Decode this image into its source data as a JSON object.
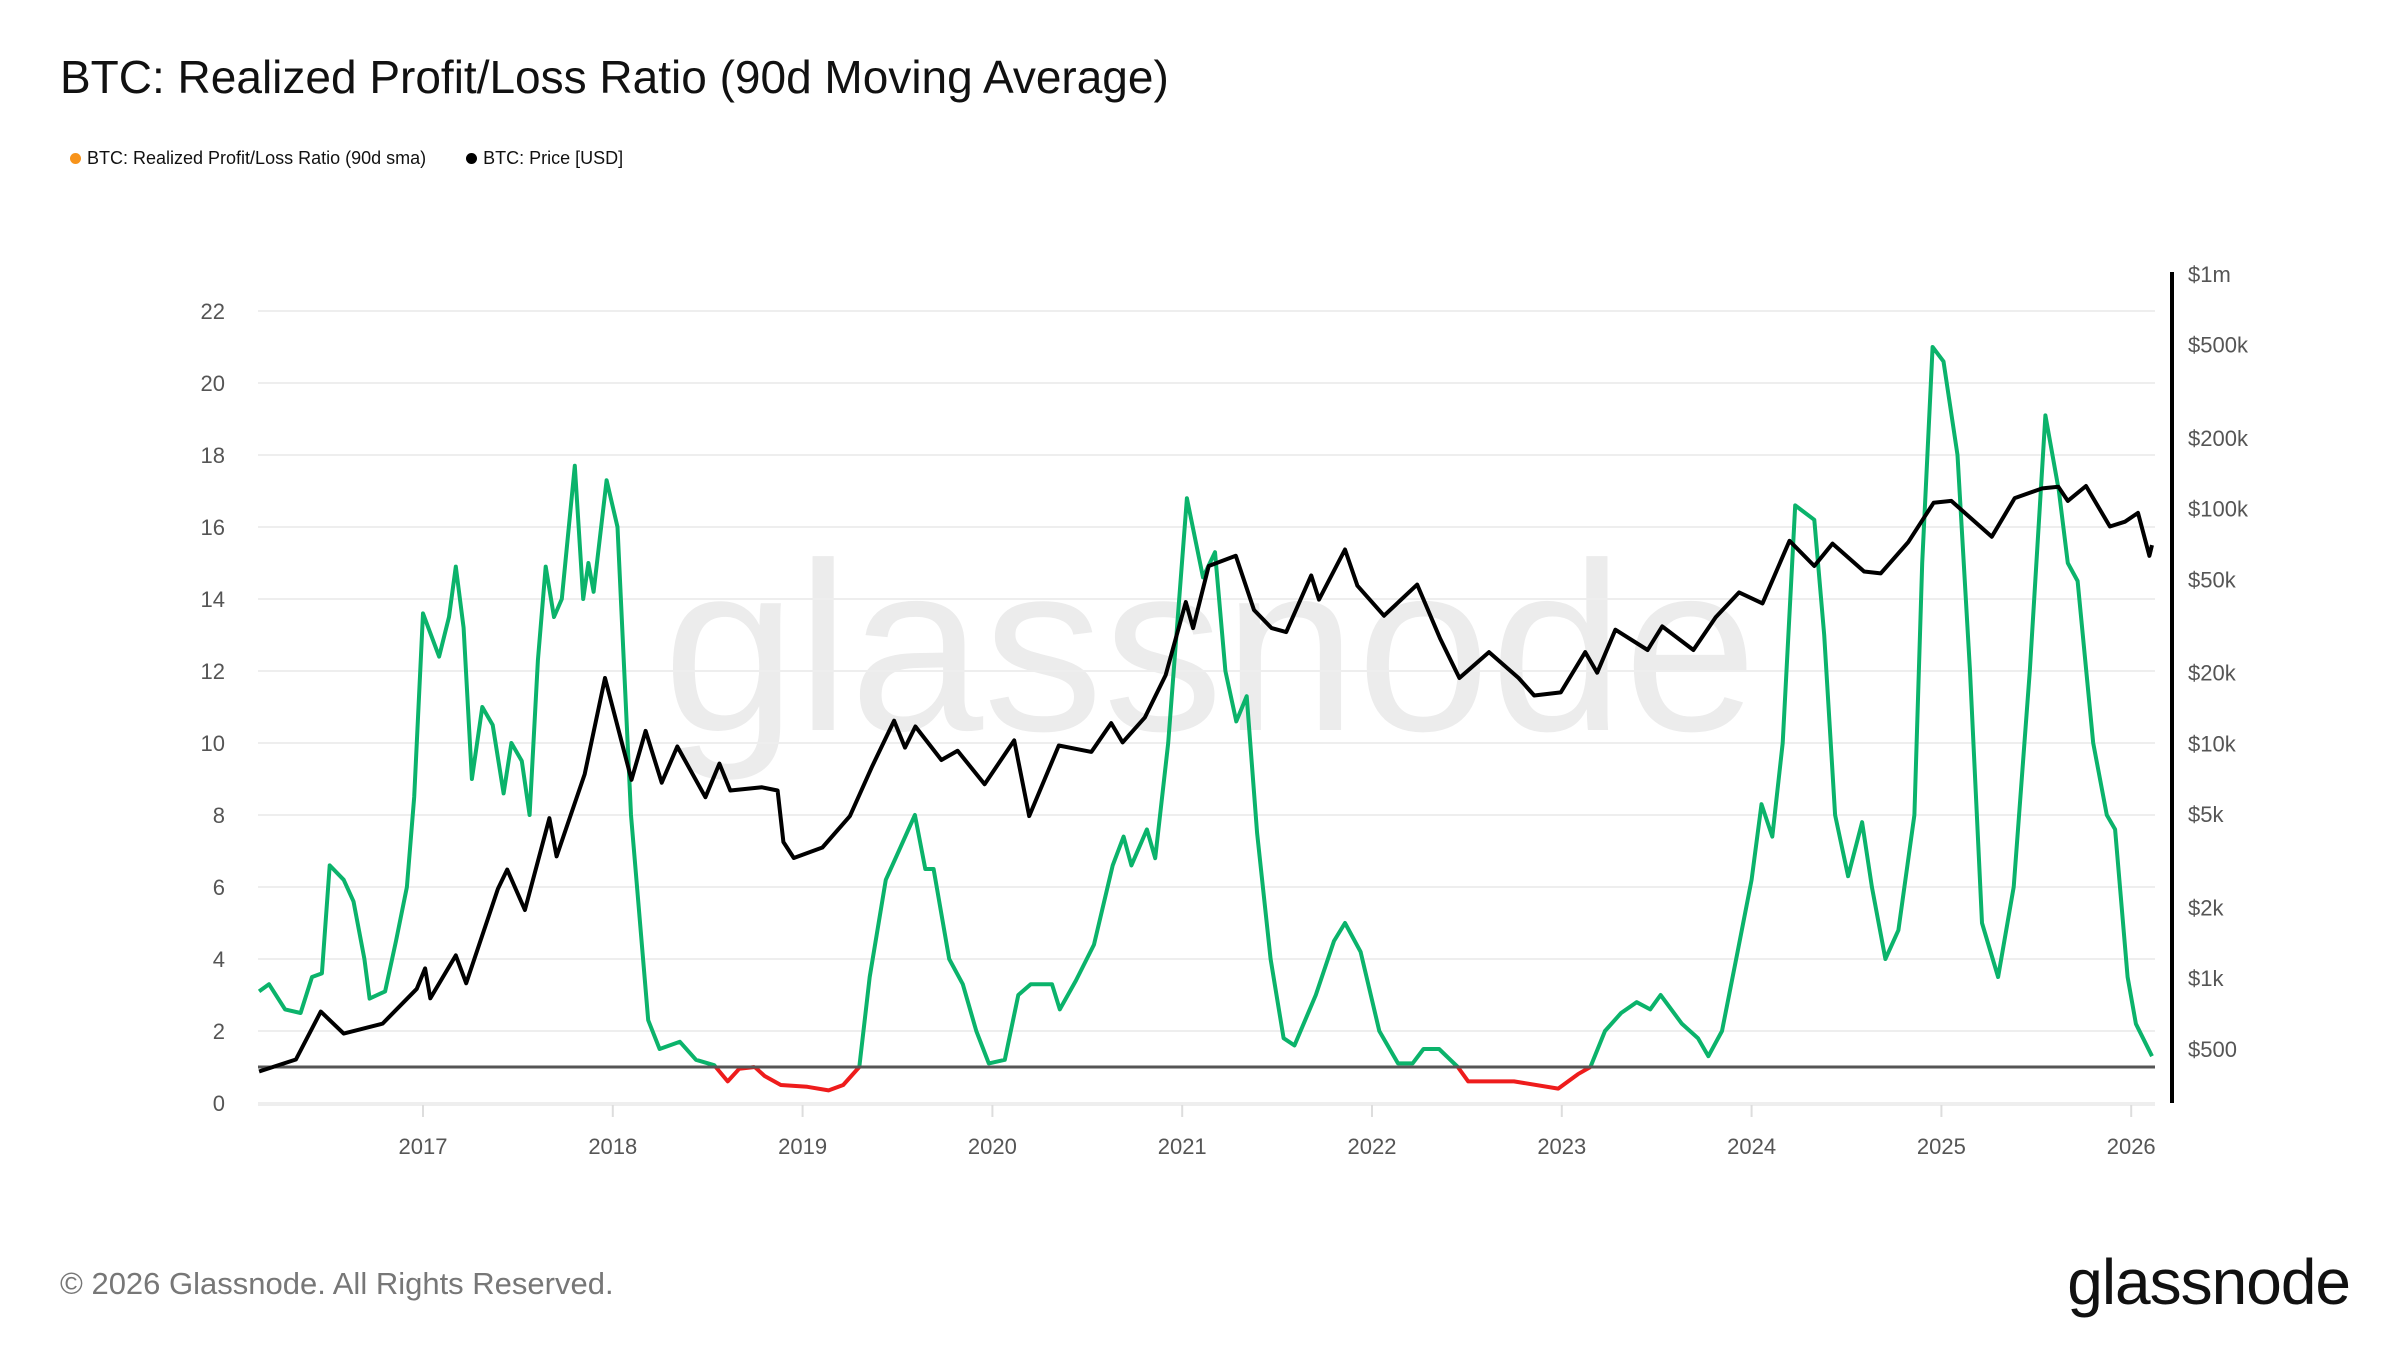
{
  "title": "BTC: Realized Profit/Loss Ratio (90d Moving Average)",
  "legend": [
    {
      "label": "BTC: Realized Profit/Loss Ratio (90d sma)",
      "color": "#f7931a"
    },
    {
      "label": "BTC: Price [USD]",
      "color": "#000000"
    }
  ],
  "watermark": "glassnode",
  "footer": "© 2026 Glassnode. All Rights Reserved.",
  "logo": "glassnode",
  "colors": {
    "ratio_above": "#0bb36b",
    "ratio_below": "#ee1c1c",
    "price": "#000000",
    "baseline": "#555555",
    "grid": "#eeeeee"
  },
  "chart_data": {
    "type": "line",
    "grid": true,
    "legend_position": "top-left",
    "x_ticks": [
      "2017",
      "2018",
      "2019",
      "2020",
      "2021",
      "2022",
      "2023",
      "2024",
      "2025",
      "2026"
    ],
    "left_axis": {
      "ticks": [
        "0",
        "2",
        "4",
        "6",
        "8",
        "10",
        "12",
        "14",
        "16",
        "18",
        "20",
        "22"
      ],
      "range": [
        0,
        22
      ]
    },
    "right_axis": {
      "scale": "log",
      "ticks": [
        [
          "$500",
          500
        ],
        [
          "$1k",
          1000
        ],
        [
          "$2k",
          2000
        ],
        [
          "$5k",
          5000
        ],
        [
          "$10k",
          10000
        ],
        [
          "$20k",
          20000
        ],
        [
          "$50k",
          50000
        ],
        [
          "$100k",
          100000
        ],
        [
          "$200k",
          200000
        ],
        [
          "$500k",
          500000
        ],
        [
          "$1m",
          1000000
        ]
      ],
      "range": [
        400,
        1000000
      ]
    },
    "reference_line": 1,
    "series": [
      {
        "name": "BTC: Realized Profit/Loss Ratio (90d sma)",
        "axis": "left",
        "points": [
          [
            "2016-02-20",
            3.1
          ],
          [
            "2016-03-10",
            3.3
          ],
          [
            "2016-04-10",
            2.6
          ],
          [
            "2016-05-10",
            2.5
          ],
          [
            "2016-06-01",
            3.5
          ],
          [
            "2016-06-20",
            3.6
          ],
          [
            "2016-07-05",
            6.6
          ],
          [
            "2016-08-01",
            6.2
          ],
          [
            "2016-08-20",
            5.6
          ],
          [
            "2016-09-10",
            4.0
          ],
          [
            "2016-09-20",
            2.9
          ],
          [
            "2016-10-20",
            3.1
          ],
          [
            "2016-11-10",
            4.5
          ],
          [
            "2016-12-01",
            6.0
          ],
          [
            "2016-12-15",
            8.5
          ],
          [
            "2017-01-01",
            13.6
          ],
          [
            "2017-02-01",
            12.4
          ],
          [
            "2017-02-20",
            13.5
          ],
          [
            "2017-03-05",
            14.9
          ],
          [
            "2017-03-20",
            13.2
          ],
          [
            "2017-04-05",
            9.0
          ],
          [
            "2017-04-25",
            11.0
          ],
          [
            "2017-05-15",
            10.5
          ],
          [
            "2017-06-05",
            8.6
          ],
          [
            "2017-06-20",
            10.0
          ],
          [
            "2017-07-10",
            9.5
          ],
          [
            "2017-07-25",
            8.0
          ],
          [
            "2017-08-10",
            12.3
          ],
          [
            "2017-08-25",
            14.9
          ],
          [
            "2017-09-10",
            13.5
          ],
          [
            "2017-09-25",
            14.0
          ],
          [
            "2017-10-20",
            17.7
          ],
          [
            "2017-11-05",
            14.0
          ],
          [
            "2017-11-15",
            15.0
          ],
          [
            "2017-11-25",
            14.2
          ],
          [
            "2017-12-20",
            17.3
          ],
          [
            "2018-01-10",
            16.0
          ],
          [
            "2018-02-05",
            8.0
          ],
          [
            "2018-03-10",
            2.3
          ],
          [
            "2018-04-01",
            1.5
          ],
          [
            "2018-05-10",
            1.7
          ],
          [
            "2018-06-10",
            1.2
          ],
          [
            "2018-07-15",
            1.05
          ],
          [
            "2018-08-10",
            0.6
          ],
          [
            "2018-09-01",
            0.95
          ],
          [
            "2018-10-01",
            1.0
          ],
          [
            "2018-10-20",
            0.75
          ],
          [
            "2018-11-20",
            0.5
          ],
          [
            "2019-01-10",
            0.45
          ],
          [
            "2019-02-20",
            0.35
          ],
          [
            "2019-03-20",
            0.5
          ],
          [
            "2019-04-20",
            1.0
          ],
          [
            "2019-05-10",
            3.5
          ],
          [
            "2019-06-10",
            6.2
          ],
          [
            "2019-07-05",
            7.0
          ],
          [
            "2019-08-05",
            8.0
          ],
          [
            "2019-08-25",
            6.5
          ],
          [
            "2019-09-10",
            6.5
          ],
          [
            "2019-10-10",
            4.0
          ],
          [
            "2019-11-05",
            3.3
          ],
          [
            "2019-12-01",
            2.0
          ],
          [
            "2019-12-25",
            1.1
          ],
          [
            "2020-01-25",
            1.2
          ],
          [
            "2020-02-20",
            3.0
          ],
          [
            "2020-03-15",
            3.3
          ],
          [
            "2020-04-25",
            3.3
          ],
          [
            "2020-05-10",
            2.6
          ],
          [
            "2020-06-10",
            3.4
          ],
          [
            "2020-07-15",
            4.4
          ],
          [
            "2020-08-20",
            6.6
          ],
          [
            "2020-09-10",
            7.4
          ],
          [
            "2020-09-25",
            6.6
          ],
          [
            "2020-10-25",
            7.6
          ],
          [
            "2020-11-10",
            6.8
          ],
          [
            "2020-12-05",
            10.0
          ],
          [
            "2021-01-10",
            16.8
          ],
          [
            "2021-02-10",
            14.6
          ],
          [
            "2021-03-05",
            15.3
          ],
          [
            "2021-03-25",
            12.0
          ],
          [
            "2021-04-15",
            10.6
          ],
          [
            "2021-05-05",
            11.3
          ],
          [
            "2021-05-25",
            7.5
          ],
          [
            "2021-06-20",
            4.0
          ],
          [
            "2021-07-15",
            1.8
          ],
          [
            "2021-08-05",
            1.6
          ],
          [
            "2021-09-15",
            3.0
          ],
          [
            "2021-10-20",
            4.5
          ],
          [
            "2021-11-10",
            5.0
          ],
          [
            "2021-12-10",
            4.2
          ],
          [
            "2022-01-15",
            2.0
          ],
          [
            "2022-02-20",
            1.1
          ],
          [
            "2022-03-20",
            1.1
          ],
          [
            "2022-04-10",
            1.5
          ],
          [
            "2022-05-10",
            1.5
          ],
          [
            "2022-06-15",
            1.0
          ],
          [
            "2022-07-05",
            0.6
          ],
          [
            "2022-10-01",
            0.6
          ],
          [
            "2022-12-25",
            0.4
          ],
          [
            "2023-02-01",
            0.8
          ],
          [
            "2023-02-25",
            1.0
          ],
          [
            "2023-03-25",
            2.0
          ],
          [
            "2023-04-25",
            2.5
          ],
          [
            "2023-05-25",
            2.8
          ],
          [
            "2023-06-20",
            2.6
          ],
          [
            "2023-07-10",
            3.0
          ],
          [
            "2023-08-20",
            2.2
          ],
          [
            "2023-09-20",
            1.8
          ],
          [
            "2023-10-10",
            1.3
          ],
          [
            "2023-11-05",
            2.0
          ],
          [
            "2023-12-05",
            4.2
          ],
          [
            "2024-01-01",
            6.2
          ],
          [
            "2024-01-20",
            8.3
          ],
          [
            "2024-02-10",
            7.4
          ],
          [
            "2024-03-01",
            10.0
          ],
          [
            "2024-03-25",
            16.6
          ],
          [
            "2024-05-01",
            16.2
          ],
          [
            "2024-05-20",
            13.0
          ],
          [
            "2024-06-10",
            8.0
          ],
          [
            "2024-07-05",
            6.3
          ],
          [
            "2024-08-01",
            7.8
          ],
          [
            "2024-08-20",
            6.0
          ],
          [
            "2024-09-15",
            4.0
          ],
          [
            "2024-10-10",
            4.8
          ],
          [
            "2024-11-10",
            8.0
          ],
          [
            "2024-11-25",
            15.0
          ],
          [
            "2024-12-15",
            21.0
          ],
          [
            "2025-01-05",
            20.6
          ],
          [
            "2025-02-01",
            18.0
          ],
          [
            "2025-02-25",
            12.0
          ],
          [
            "2025-03-20",
            5.0
          ],
          [
            "2025-04-20",
            3.5
          ],
          [
            "2025-05-20",
            6.0
          ],
          [
            "2025-06-20",
            12.0
          ],
          [
            "2025-07-20",
            19.1
          ],
          [
            "2025-08-15",
            17.0
          ],
          [
            "2025-09-01",
            15.0
          ],
          [
            "2025-09-20",
            14.5
          ],
          [
            "2025-10-20",
            10.0
          ],
          [
            "2025-11-15",
            8.0
          ],
          [
            "2025-12-01",
            7.6
          ],
          [
            "2025-12-25",
            3.5
          ],
          [
            "2026-01-10",
            2.2
          ],
          [
            "2026-02-10",
            1.3
          ]
        ]
      },
      {
        "name": "BTC: Price [USD]",
        "axis": "right",
        "points": [
          [
            "2016-02-20",
            400
          ],
          [
            "2016-05-01",
            450
          ],
          [
            "2016-06-18",
            720
          ],
          [
            "2016-08-01",
            580
          ],
          [
            "2016-10-15",
            640
          ],
          [
            "2016-12-20",
            900
          ],
          [
            "2017-01-05",
            1100
          ],
          [
            "2017-01-15",
            820
          ],
          [
            "2017-03-05",
            1250
          ],
          [
            "2017-03-25",
            950
          ],
          [
            "2017-05-25",
            2400
          ],
          [
            "2017-06-12",
            2900
          ],
          [
            "2017-07-16",
            1950
          ],
          [
            "2017-09-01",
            4800
          ],
          [
            "2017-09-15",
            3300
          ],
          [
            "2017-11-08",
            7400
          ],
          [
            "2017-12-17",
            19000
          ],
          [
            "2018-02-06",
            7000
          ],
          [
            "2018-03-05",
            11300
          ],
          [
            "2018-04-05",
            6800
          ],
          [
            "2018-05-05",
            9700
          ],
          [
            "2018-06-28",
            5900
          ],
          [
            "2018-07-25",
            8200
          ],
          [
            "2018-08-15",
            6300
          ],
          [
            "2018-10-15",
            6500
          ],
          [
            "2018-11-14",
            6300
          ],
          [
            "2018-11-25",
            3800
          ],
          [
            "2018-12-15",
            3250
          ],
          [
            "2019-02-08",
            3600
          ],
          [
            "2019-04-02",
            4900
          ],
          [
            "2019-05-15",
            8000
          ],
          [
            "2019-06-26",
            12500
          ],
          [
            "2019-07-17",
            9600
          ],
          [
            "2019-08-06",
            11800
          ],
          [
            "2019-09-25",
            8500
          ],
          [
            "2019-10-26",
            9300
          ],
          [
            "2019-12-17",
            6700
          ],
          [
            "2020-02-12",
            10300
          ],
          [
            "2020-03-12",
            4900
          ],
          [
            "2020-05-08",
            9800
          ],
          [
            "2020-07-10",
            9200
          ],
          [
            "2020-08-17",
            12200
          ],
          [
            "2020-09-08",
            10100
          ],
          [
            "2020-10-21",
            12900
          ],
          [
            "2020-11-30",
            19500
          ],
          [
            "2021-01-08",
            40000
          ],
          [
            "2021-01-22",
            31000
          ],
          [
            "2021-02-21",
            57000
          ],
          [
            "2021-04-14",
            63000
          ],
          [
            "2021-05-19",
            37000
          ],
          [
            "2021-06-22",
            31000
          ],
          [
            "2021-07-20",
            29800
          ],
          [
            "2021-09-06",
            52000
          ],
          [
            "2021-09-21",
            41000
          ],
          [
            "2021-11-10",
            67000
          ],
          [
            "2021-12-04",
            47000
          ],
          [
            "2022-01-24",
            35000
          ],
          [
            "2022-03-29",
            47500
          ],
          [
            "2022-05-12",
            28000
          ],
          [
            "2022-06-18",
            19000
          ],
          [
            "2022-08-14",
            24500
          ],
          [
            "2022-10-10",
            19000
          ],
          [
            "2022-11-09",
            16000
          ],
          [
            "2022-12-30",
            16500
          ],
          [
            "2023-02-15",
            24500
          ],
          [
            "2023-03-10",
            20000
          ],
          [
            "2023-04-14",
            30500
          ],
          [
            "2023-06-15",
            25000
          ],
          [
            "2023-07-13",
            31500
          ],
          [
            "2023-09-11",
            25000
          ],
          [
            "2023-10-24",
            34500
          ],
          [
            "2023-12-08",
            44000
          ],
          [
            "2024-01-22",
            39500
          ],
          [
            "2024-03-14",
            73000
          ],
          [
            "2024-05-01",
            57000
          ],
          [
            "2024-06-05",
            71000
          ],
          [
            "2024-08-05",
            54000
          ],
          [
            "2024-09-06",
            53000
          ],
          [
            "2024-10-29",
            72000
          ],
          [
            "2024-12-17",
            106000
          ],
          [
            "2025-01-20",
            108000
          ],
          [
            "2025-04-08",
            76000
          ],
          [
            "2025-05-22",
            111000
          ],
          [
            "2025-07-14",
            122000
          ],
          [
            "2025-08-14",
            124000
          ],
          [
            "2025-09-01",
            108000
          ],
          [
            "2025-10-06",
            125000
          ],
          [
            "2025-11-21",
            84000
          ],
          [
            "2025-12-20",
            88000
          ],
          [
            "2026-01-14",
            96000
          ],
          [
            "2026-02-05",
            63000
          ],
          [
            "2026-02-10",
            70000
          ]
        ]
      }
    ]
  }
}
